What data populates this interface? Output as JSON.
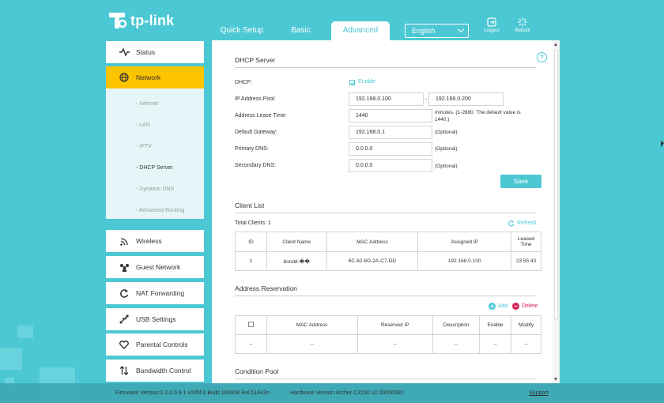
{
  "logo": {
    "text": "tp-link"
  },
  "tabs": [
    {
      "label": "Quick Setup"
    },
    {
      "label": "Basic"
    },
    {
      "label": "Advanced"
    }
  ],
  "language": {
    "selected": "English"
  },
  "header_buttons": {
    "logout": "Logout",
    "reboot": "Reboot"
  },
  "sidebar": {
    "items": [
      {
        "label": "Status",
        "icon": "status-icon"
      },
      {
        "label": "Network",
        "icon": "globe-icon"
      },
      {
        "label": "Wireless",
        "icon": "wireless-icon"
      },
      {
        "label": "Guest Network",
        "icon": "guest-network-icon"
      },
      {
        "label": "NAT Forwarding",
        "icon": "nat-forwarding-icon"
      },
      {
        "label": "USB Settings",
        "icon": "usb-icon"
      },
      {
        "label": "Parental Controls",
        "icon": "heart-icon"
      },
      {
        "label": "Bandwidth Control",
        "icon": "bandwidth-icon"
      }
    ],
    "network_sub": [
      "- Internet",
      "- LAN",
      "- IPTV",
      "- DHCP Server",
      "- Dynamic DNS",
      "- Advanced Routing"
    ]
  },
  "dhcp": {
    "title": "DHCP Server",
    "dhcp_label": "DHCP:",
    "enable_label": "Enable",
    "pool_label": "IP Address Pool:",
    "pool_start": "192.168.0.100",
    "pool_sep": "-",
    "pool_end": "192.168.0.200",
    "lease_label": "Address Lease Time:",
    "lease_value": "1440",
    "lease_note": "minutes. (1-2880. The default value is 1440.)",
    "gateway_label": "Default Gateway:",
    "gateway_value": "192.168.0.1",
    "primary_dns_label": "Primary DNS:",
    "primary_dns_value": "0.0.0.0",
    "secondary_dns_label": "Secondary DNS:",
    "secondary_dns_value": "0.0.0.0",
    "optional": "(Optional)",
    "save": "Save"
  },
  "client_list": {
    "title": "Client List",
    "total": "Total Clients: 1",
    "refresh": "Refresh",
    "headers": [
      "ID",
      "Client Name",
      "MAC Address",
      "Assigned IP",
      "Leased Time"
    ],
    "rows": [
      [
        "1",
        "bondd-��",
        "6C-62-6D-2A-C7-DD",
        "192.168.0.100",
        "23:55:43"
      ]
    ]
  },
  "reservation": {
    "title": "Address Reservation",
    "add": "Add",
    "delete": "Delete",
    "headers": [
      "",
      "MAC Address",
      "Reserved IP",
      "Description",
      "Enable",
      "Modify"
    ],
    "rows": [
      [
        "--",
        "--",
        "--",
        "--",
        "--",
        "--"
      ]
    ]
  },
  "condition_pool": {
    "title": "Condition Pool"
  },
  "footer": {
    "firmware": "Firmware Version:0.2.0 0.9.1 v005f.0 Build 160908 Rel.51843n",
    "hardware": "Hardware Version:Archer C3150 v2 00000000",
    "support": "Support"
  },
  "colors": {
    "accent": "#4cc8d4",
    "active": "#fdc400",
    "delete": "#d6245b"
  }
}
